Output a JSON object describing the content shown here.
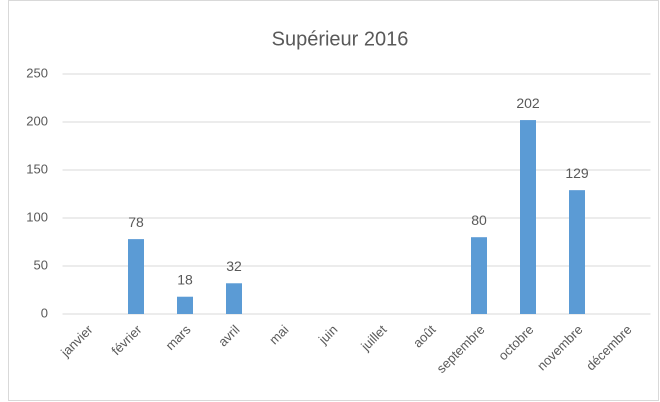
{
  "chart_data": {
    "type": "bar",
    "title": "Supérieur 2016",
    "categories": [
      "janvier",
      "février",
      "mars",
      "avril",
      "mai",
      "juin",
      "juillet",
      "août",
      "septembre",
      "octobre",
      "novembre",
      "décembre"
    ],
    "values": [
      null,
      78,
      18,
      32,
      null,
      null,
      null,
      null,
      80,
      202,
      129,
      null
    ],
    "color": "#5b9bd5",
    "ylim": [
      0,
      250
    ],
    "yticks": [
      0,
      50,
      100,
      150,
      200,
      250
    ],
    "grid": true
  }
}
